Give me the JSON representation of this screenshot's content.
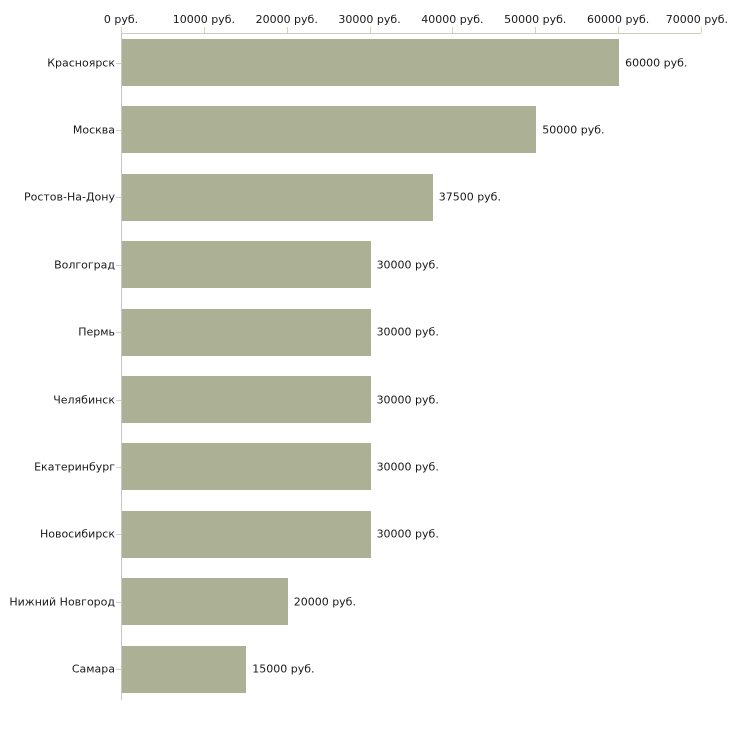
{
  "chart_data": {
    "type": "bar",
    "orientation": "horizontal",
    "categories": [
      "Красноярск",
      "Москва",
      "Ростов-На-Дону",
      "Волгоград",
      "Пермь",
      "Челябинск",
      "Екатеринбург",
      "Новосибирск",
      "Нижний Новгород",
      "Самара"
    ],
    "values": [
      60000,
      50000,
      37500,
      30000,
      30000,
      30000,
      30000,
      30000,
      20000,
      15000
    ],
    "value_labels": [
      "60000 руб.",
      "50000 руб.",
      "37500 руб.",
      "30000 руб.",
      "30000 руб.",
      "30000 руб.",
      "30000 руб.",
      "30000 руб.",
      "20000 руб.",
      "15000 руб."
    ],
    "x_ticks": [
      0,
      10000,
      20000,
      30000,
      40000,
      50000,
      60000,
      70000
    ],
    "x_tick_labels": [
      "0 руб.",
      "10000 руб.",
      "20000 руб.",
      "30000 руб.",
      "40000 руб.",
      "50000 руб.",
      "60000 руб.",
      "70000 руб."
    ],
    "xlim": [
      0,
      70000
    ],
    "unit": "руб.",
    "xlabel": "",
    "ylabel": "",
    "title": "",
    "grid": false,
    "legend": null,
    "x_axis_position": "top",
    "colors": {
      "bar": "#acb196",
      "x_axis_line": "#ccccc0",
      "y_axis_line": "#c6c6c6",
      "tick": "#d6d3b8",
      "text": "#1a1a1a",
      "background": "#ffffff"
    }
  }
}
